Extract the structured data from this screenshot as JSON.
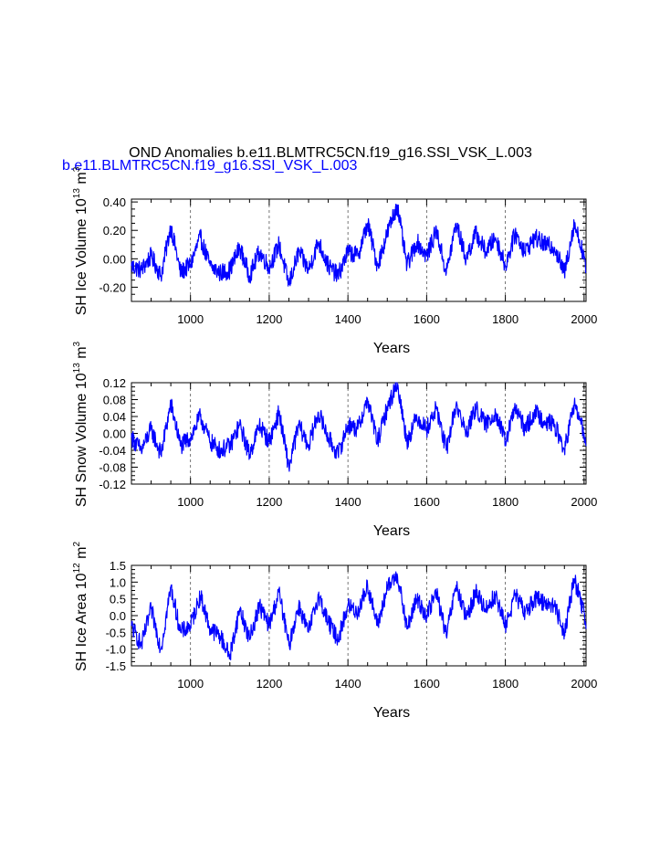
{
  "figure": {
    "title": "OND Anomalies b.e11.BLMTRC5CN.f19_g16.SSI_VSK_L.003",
    "subtitle": "b.e11.BLMTRC5CN.f19_g16.SSI_VSK_L.003",
    "series_color": "#0000ff",
    "grid_color": "#555555"
  },
  "chart_data": [
    {
      "type": "line",
      "ylabel_main": "SH Ice Volume 10",
      "ylabel_exp": "13",
      "ylabel_unit": " m",
      "ylabel_unit_exp": "3",
      "xlabel": "Years",
      "xlim": [
        850,
        2005
      ],
      "ylim": [
        -0.3,
        0.42
      ],
      "xticks": [
        1000,
        1200,
        1400,
        1600,
        1800,
        2000
      ],
      "xtick_labels": [
        "1000",
        "1200",
        "1400",
        "1600",
        "1800",
        "2000"
      ],
      "yticks": [
        -0.2,
        0.0,
        0.2,
        0.4
      ],
      "ytick_labels": [
        "-0.20",
        "0.00",
        "0.20",
        "0.40"
      ],
      "grid": "dashed vertical lines at major x ticks",
      "series": [
        {
          "x": [
            850,
            875,
            900,
            925,
            950,
            975,
            1000,
            1025,
            1050,
            1075,
            1100,
            1125,
            1150,
            1175,
            1200,
            1225,
            1250,
            1275,
            1300,
            1325,
            1350,
            1375,
            1400,
            1425,
            1450,
            1475,
            1500,
            1525,
            1550,
            1575,
            1600,
            1625,
            1650,
            1675,
            1700,
            1725,
            1750,
            1775,
            1800,
            1825,
            1850,
            1875,
            1900,
            1925,
            1950,
            1975,
            2000,
            2005
          ],
          "y": [
            -0.05,
            -0.08,
            0.02,
            -0.12,
            0.23,
            -0.1,
            -0.04,
            0.15,
            -0.05,
            -0.1,
            -0.08,
            0.08,
            -0.12,
            0.05,
            -0.06,
            0.1,
            -0.18,
            0.05,
            -0.08,
            0.12,
            -0.05,
            -0.12,
            0.05,
            0.02,
            0.25,
            -0.05,
            0.18,
            0.38,
            -0.05,
            0.12,
            0.02,
            0.2,
            -0.1,
            0.25,
            0.0,
            0.18,
            0.05,
            0.15,
            -0.05,
            0.18,
            0.05,
            0.15,
            0.1,
            0.08,
            -0.1,
            0.25,
            0.02,
            -0.1
          ]
        }
      ]
    },
    {
      "type": "line",
      "ylabel_main": "SH Snow Volume 10",
      "ylabel_exp": "13",
      "ylabel_unit": " m",
      "ylabel_unit_exp": "3",
      "xlabel": "Years",
      "xlim": [
        850,
        2005
      ],
      "ylim": [
        -0.12,
        0.12
      ],
      "xticks": [
        1000,
        1200,
        1400,
        1600,
        1800,
        2000
      ],
      "xtick_labels": [
        "1000",
        "1200",
        "1400",
        "1600",
        "1800",
        "2000"
      ],
      "yticks": [
        -0.12,
        -0.08,
        -0.04,
        0.0,
        0.04,
        0.08,
        0.12
      ],
      "ytick_labels": [
        "-0.12",
        "-0.08",
        "-0.04",
        "0.00",
        "0.04",
        "0.08",
        "0.12"
      ],
      "grid": "dashed vertical lines at major x ticks",
      "series": [
        {
          "x": [
            850,
            875,
            900,
            925,
            950,
            975,
            1000,
            1025,
            1050,
            1075,
            1100,
            1125,
            1150,
            1175,
            1200,
            1225,
            1250,
            1275,
            1300,
            1325,
            1350,
            1375,
            1400,
            1425,
            1450,
            1475,
            1500,
            1525,
            1550,
            1575,
            1600,
            1625,
            1650,
            1675,
            1700,
            1725,
            1750,
            1775,
            1800,
            1825,
            1850,
            1875,
            1900,
            1925,
            1950,
            1975,
            2000,
            2005
          ],
          "y": [
            -0.01,
            -0.04,
            0.01,
            -0.05,
            0.07,
            -0.03,
            -0.01,
            0.04,
            -0.02,
            -0.04,
            -0.03,
            0.02,
            -0.05,
            0.02,
            -0.02,
            0.05,
            -0.08,
            0.02,
            -0.03,
            0.05,
            -0.01,
            -0.05,
            0.02,
            0.01,
            0.08,
            -0.02,
            0.06,
            0.12,
            -0.02,
            0.04,
            0.01,
            0.06,
            -0.04,
            0.07,
            0.0,
            0.06,
            0.02,
            0.05,
            -0.02,
            0.06,
            0.01,
            0.05,
            0.03,
            0.02,
            -0.04,
            0.07,
            0.0,
            -0.03
          ]
        }
      ]
    },
    {
      "type": "line",
      "ylabel_main": "SH Ice Area 10",
      "ylabel_exp": "12",
      "ylabel_unit": " m",
      "ylabel_unit_exp": "2",
      "xlabel": "Years",
      "xlim": [
        850,
        2005
      ],
      "ylim": [
        -1.5,
        1.5
      ],
      "xticks": [
        1000,
        1200,
        1400,
        1600,
        1800,
        2000
      ],
      "xtick_labels": [
        "1000",
        "1200",
        "1400",
        "1600",
        "1800",
        "2000"
      ],
      "yticks": [
        -1.5,
        -1.0,
        -0.5,
        0.0,
        0.5,
        1.0,
        1.5
      ],
      "ytick_labels": [
        "-1.5",
        "-1.0",
        "-0.5",
        "0.0",
        "0.5",
        "1.0",
        "1.5"
      ],
      "grid": "dashed vertical lines at major x ticks",
      "series": [
        {
          "x": [
            850,
            875,
            900,
            925,
            950,
            975,
            1000,
            1025,
            1050,
            1075,
            1100,
            1125,
            1150,
            1175,
            1200,
            1225,
            1250,
            1275,
            1300,
            1325,
            1350,
            1375,
            1400,
            1425,
            1450,
            1475,
            1500,
            1525,
            1550,
            1575,
            1600,
            1625,
            1650,
            1675,
            1700,
            1725,
            1750,
            1775,
            1800,
            1825,
            1850,
            1875,
            1900,
            1925,
            1950,
            1975,
            2000,
            2005
          ],
          "y": [
            -0.3,
            -0.9,
            0.2,
            -1.0,
            0.85,
            -0.5,
            -0.3,
            0.6,
            -0.4,
            -0.6,
            -1.2,
            0.2,
            -0.7,
            0.3,
            -0.3,
            0.7,
            -0.9,
            0.3,
            -0.5,
            0.6,
            -0.2,
            -0.7,
            0.3,
            0.1,
            0.9,
            -0.3,
            0.8,
            1.25,
            -0.4,
            0.5,
            0.0,
            0.7,
            -0.6,
            0.9,
            -0.1,
            0.7,
            0.2,
            0.6,
            -0.3,
            0.6,
            0.1,
            0.5,
            0.4,
            0.3,
            -0.5,
            1.1,
            0.1,
            -0.4
          ]
        }
      ]
    }
  ]
}
